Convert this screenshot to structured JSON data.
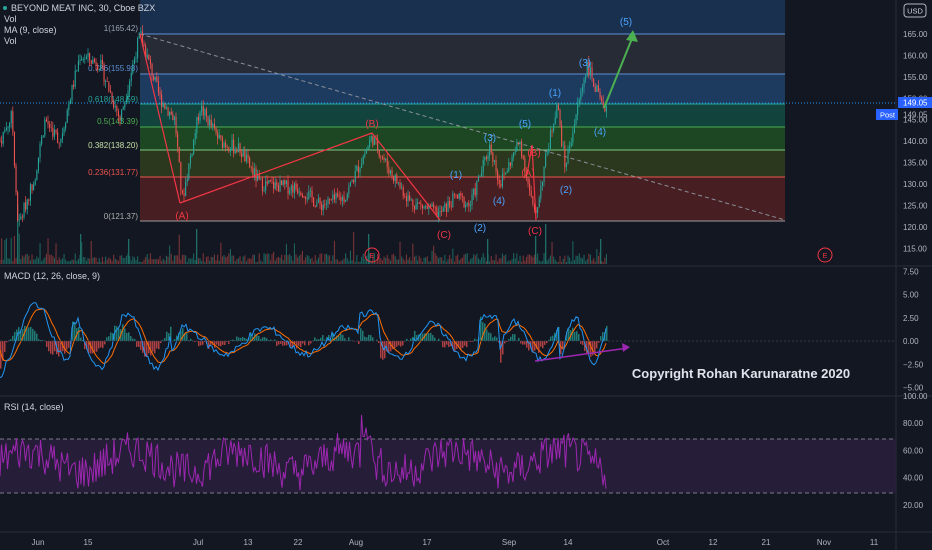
{
  "legend": {
    "symbol": "BEYOND MEAT INC, 30, Cboe BZX",
    "lines": [
      "Vol",
      "MA (9, close)",
      "Vol"
    ]
  },
  "currency": "USD",
  "price_tag": {
    "last": "149.05",
    "post_label": "Post",
    "post": "149.05"
  },
  "copyright": "Copyright Rohan Karunaratne 2020",
  "colors": {
    "background": "#131722",
    "up": "#26a69a",
    "down": "#ef5350",
    "macd": "#2196f3",
    "signal": "#ff6d00",
    "rsi": "#9c27b0",
    "wave_red": "#f23645",
    "wave_blue": "#4aa3ff",
    "arrow_green": "#4caf50",
    "arrow_purple": "#9c27b0"
  },
  "price_pane": {
    "y_ticks": [
      "165.00",
      "160.00",
      "155.00",
      "150.00",
      "145.00",
      "140.00",
      "135.00",
      "130.00",
      "125.00",
      "120.00",
      "115.00"
    ],
    "fib_levels": [
      {
        "ratio": "1",
        "price": "165.42"
      },
      {
        "ratio": "0.786",
        "price": "155.98"
      },
      {
        "ratio": "0.618",
        "price": "148.59"
      },
      {
        "ratio": "0.5",
        "price": "143.39"
      },
      {
        "ratio": "0.382",
        "price": "138.20"
      },
      {
        "ratio": "0.236",
        "price": "131.77"
      },
      {
        "ratio": "0",
        "price": "121.37"
      }
    ],
    "wave_labels_red": [
      "(A)",
      "(B)",
      "(C)",
      "(A)",
      "(B)",
      "(C)"
    ],
    "wave_labels_blue": [
      "(1)",
      "(2)",
      "(3)",
      "(4)",
      "(5)",
      "(1)",
      "(2)",
      "(3)",
      "(4)",
      "(5)"
    ],
    "event_marker": "E"
  },
  "macd_pane": {
    "title": "MACD (12, 26, close, 9)",
    "y_ticks": [
      "7.50",
      "5.00",
      "2.50",
      "0.00",
      "−2.50",
      "−5.00"
    ]
  },
  "rsi_pane": {
    "title": "RSI (14, close)",
    "y_ticks": [
      "100.00",
      "80.00",
      "60.00",
      "40.00",
      "20.00"
    ]
  },
  "x_axis": {
    "ticks": [
      "Jun",
      "15",
      "Jul",
      "13",
      "22",
      "Aug",
      "17",
      "Sep",
      "14",
      "Oct",
      "12",
      "21",
      "Nov",
      "11"
    ]
  },
  "chart_data": {
    "type": "line",
    "title": "BEYOND MEAT INC, 30, Cboe BZX",
    "x_ticks": [
      "Jun",
      "15",
      "Jul",
      "13",
      "22",
      "Aug",
      "17",
      "Sep",
      "14",
      "Oct",
      "12",
      "21",
      "Nov",
      "11"
    ],
    "price_ylim": [
      111,
      171
    ],
    "price_anchor_points": [
      {
        "x": 0,
        "y": 140
      },
      {
        "x": 12,
        "y": 146
      },
      {
        "x": 18,
        "y": 120
      },
      {
        "x": 35,
        "y": 132
      },
      {
        "x": 45,
        "y": 145
      },
      {
        "x": 60,
        "y": 140
      },
      {
        "x": 80,
        "y": 160
      },
      {
        "x": 100,
        "y": 158
      },
      {
        "x": 120,
        "y": 145
      },
      {
        "x": 140,
        "y": 165
      },
      {
        "x": 160,
        "y": 150
      },
      {
        "x": 175,
        "y": 145
      },
      {
        "x": 182,
        "y": 126
      },
      {
        "x": 200,
        "y": 148
      },
      {
        "x": 220,
        "y": 140
      },
      {
        "x": 240,
        "y": 138
      },
      {
        "x": 260,
        "y": 130
      },
      {
        "x": 300,
        "y": 129
      },
      {
        "x": 320,
        "y": 125
      },
      {
        "x": 345,
        "y": 127
      },
      {
        "x": 372,
        "y": 141
      },
      {
        "x": 390,
        "y": 133
      },
      {
        "x": 410,
        "y": 126
      },
      {
        "x": 440,
        "y": 123
      },
      {
        "x": 456,
        "y": 127
      },
      {
        "x": 470,
        "y": 125
      },
      {
        "x": 490,
        "y": 139
      },
      {
        "x": 500,
        "y": 130
      },
      {
        "x": 520,
        "y": 140
      },
      {
        "x": 528,
        "y": 130
      },
      {
        "x": 535,
        "y": 122
      },
      {
        "x": 545,
        "y": 135
      },
      {
        "x": 557,
        "y": 149
      },
      {
        "x": 565,
        "y": 134
      },
      {
        "x": 575,
        "y": 145
      },
      {
        "x": 587,
        "y": 158
      },
      {
        "x": 596,
        "y": 152
      },
      {
        "x": 603,
        "y": 147
      },
      {
        "x": 607,
        "y": 149
      }
    ],
    "fibonacci_retracement": {
      "high": 165.42,
      "low": 121.37,
      "levels": [
        {
          "ratio": 1,
          "price": 165.42
        },
        {
          "ratio": 0.786,
          "price": 155.98
        },
        {
          "ratio": 0.618,
          "price": 148.59
        },
        {
          "ratio": 0.5,
          "price": 143.39
        },
        {
          "ratio": 0.382,
          "price": 138.2
        },
        {
          "ratio": 0.236,
          "price": 131.77
        },
        {
          "ratio": 0,
          "price": 121.37
        }
      ]
    },
    "last_price": 149.05,
    "macd_ylim": [
      -6,
      8.5
    ],
    "rsi_ylim": [
      10,
      100
    ],
    "rsi_bands": [
      70,
      30
    ],
    "legend": "top-left"
  }
}
